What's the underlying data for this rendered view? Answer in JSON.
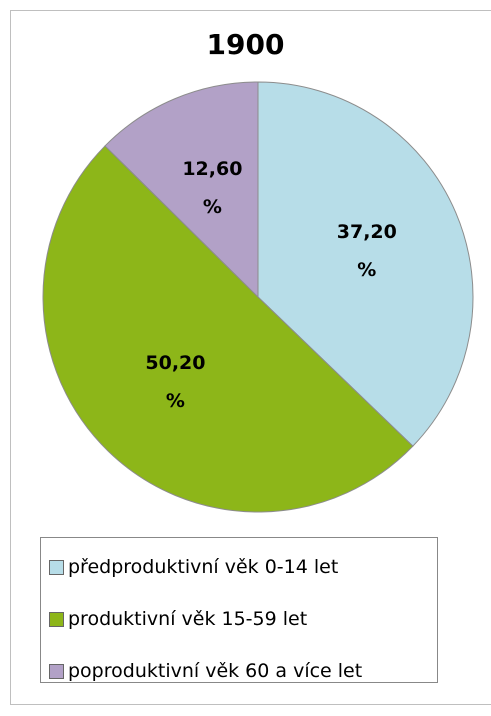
{
  "chart_data": {
    "type": "pie",
    "title": "1900",
    "categories": [
      "předproduktivní věk 0-14 let",
      "produktivní věk 15-59 let",
      "poproduktivní věk 60 a více let"
    ],
    "values": [
      37.2,
      50.2,
      12.6
    ],
    "value_labels": [
      "37,20 %",
      "50,20 %",
      "12,60 %"
    ],
    "colors": [
      "#b7dde8",
      "#8db619",
      "#b2a1c7"
    ],
    "legend": "bottom"
  }
}
